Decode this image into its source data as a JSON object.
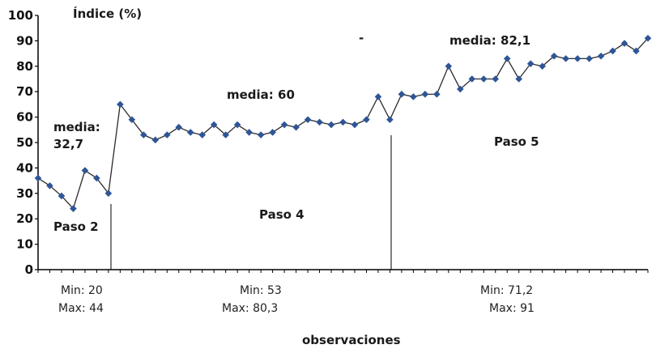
{
  "chart_data": {
    "type": "line",
    "title": "",
    "ylabel": "Índice (%)",
    "xlabel": "observaciones",
    "ylim": [
      0,
      100
    ],
    "yticks": [
      "0",
      "10",
      "20",
      "30",
      "40",
      "50",
      "60",
      "70",
      "80",
      "90",
      "100"
    ],
    "grid": false,
    "legend": "none",
    "series": [
      {
        "color": "#2e5596",
        "values": [
          36,
          33,
          29,
          24,
          39,
          36,
          30,
          65,
          59,
          53,
          51,
          53,
          56,
          54,
          53,
          57,
          53,
          57,
          54,
          53,
          54,
          57,
          56,
          59,
          58,
          57,
          58,
          57,
          59,
          68,
          59,
          69,
          68,
          69,
          69,
          80,
          71,
          75,
          75,
          75,
          83,
          75,
          81,
          80,
          84,
          83,
          83,
          83,
          84,
          86,
          89,
          86,
          91
        ]
      }
    ],
    "annotations": {
      "paso2": "Paso 2",
      "paso4": "Paso 4",
      "paso5": "Paso 5",
      "media_label": "media:",
      "media2": "32,7",
      "media4": "media: 60",
      "media5": "media: 82,1",
      "dash": "-",
      "min2": "Min: 20",
      "max2": "Max: 44",
      "min4": "Min: 53",
      "max4": "Max: 80,3",
      "min5": "Min: 71,2",
      "max5": "Max: 91"
    }
  }
}
